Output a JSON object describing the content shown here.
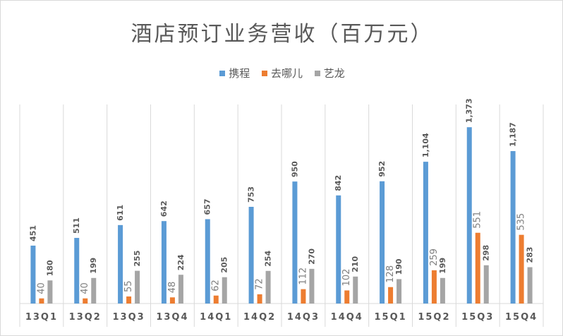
{
  "chart_data": {
    "type": "bar",
    "title": "酒店预订业务营收（百万元）",
    "categories": [
      "13Q1",
      "13Q2",
      "13Q3",
      "13Q4",
      "14Q1",
      "14Q2",
      "14Q3",
      "14Q4",
      "15Q1",
      "15Q2",
      "15Q3",
      "15Q4"
    ],
    "series": [
      {
        "name": "携程",
        "color": "#5b9bd5",
        "label_color": "#595959",
        "label_weight": "bold",
        "values": [
          451,
          511,
          611,
          642,
          657,
          753,
          950,
          842,
          952,
          1104,
          1373,
          1187
        ],
        "labels": [
          "451",
          "511",
          "611",
          "642",
          "657",
          "753",
          "950",
          "842",
          "952",
          "1,104",
          "1,373",
          "1,187"
        ]
      },
      {
        "name": "去哪儿",
        "color": "#ed7d31",
        "label_color": "#7f7f7f",
        "label_weight": "normal",
        "values": [
          40,
          40,
          55,
          48,
          62,
          72,
          112,
          102,
          128,
          259,
          551,
          535
        ],
        "labels": [
          "40",
          "40",
          "55",
          "48",
          "62",
          "72",
          "112",
          "102",
          "128",
          "259",
          "551",
          "535"
        ]
      },
      {
        "name": "艺龙",
        "color": "#a5a5a5",
        "label_color": "#595959",
        "label_weight": "bold",
        "values": [
          180,
          199,
          255,
          224,
          205,
          254,
          270,
          210,
          190,
          199,
          298,
          283
        ],
        "labels": [
          "180",
          "199",
          "255",
          "224",
          "205",
          "254",
          "270",
          "210",
          "190",
          "199",
          "298",
          "283"
        ]
      }
    ],
    "ylim": [
      0,
      1500
    ],
    "legend_position": "top",
    "gridlines": "vertical category separators"
  }
}
